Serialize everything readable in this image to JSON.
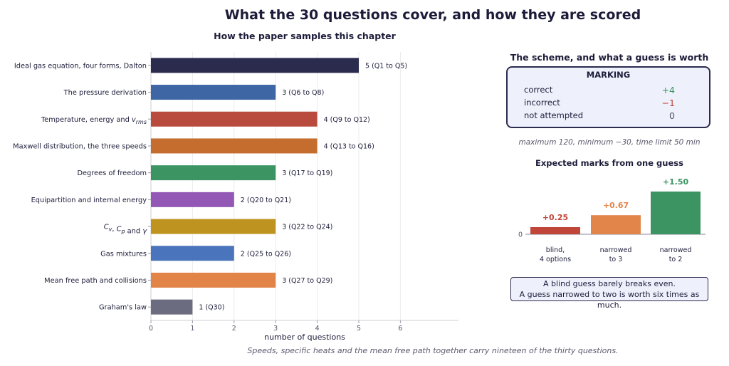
{
  "title": "What the 30 questions cover, and how they are scored",
  "footer_note": "Speeds, specific heats and the mean free path together carry nineteen of the thirty questions.",
  "chart_data": [
    {
      "type": "bar",
      "orientation": "horizontal",
      "title": "How the paper samples this chapter",
      "xlabel": "number of questions",
      "ylabel": "",
      "xlim": [
        0,
        7.4
      ],
      "xticks": [
        0,
        1,
        2,
        3,
        4,
        5,
        6
      ],
      "grid": "vertical",
      "categories": [
        "Ideal gas equation, four forms, Dalton",
        "The pressure derivation",
        "Temperature, energy and v_rms",
        "Maxwell distribution, the three speeds",
        "Degrees of freedom",
        "Equipartition and internal energy",
        "C_v, C_p and γ",
        "Gas mixtures",
        "Mean free path and collisions",
        "Graham's law"
      ],
      "values": [
        5,
        3,
        4,
        4,
        3,
        2,
        3,
        2,
        3,
        1
      ],
      "data_labels": [
        "5   (Q1 to Q5)",
        "3   (Q6 to Q8)",
        "4   (Q9 to Q12)",
        "4   (Q13 to Q16)",
        "3   (Q17 to Q19)",
        "2   (Q20 to Q21)",
        "3   (Q22 to Q24)",
        "2   (Q25 to Q26)",
        "3   (Q27 to Q29)",
        "1   (Q30)"
      ],
      "colors": [
        "#2b2b4e",
        "#3e66a5",
        "#b84a3e",
        "#c46d2e",
        "#3b9462",
        "#9357b5",
        "#bf9320",
        "#4a74bb",
        "#e28348",
        "#6b6c80"
      ]
    },
    {
      "type": "bar",
      "title": "Expected marks from one guess",
      "categories": [
        "blind,\n4 options",
        "narrowed\nto 3",
        "narrowed\nto 2"
      ],
      "values": [
        0.25,
        0.67,
        1.5
      ],
      "data_labels": [
        "+0.25",
        "+0.67",
        "+1.50"
      ],
      "colors": [
        "#c0463a",
        "#e2854a",
        "#3b9462"
      ],
      "yticks": [
        0
      ],
      "xlabel": "",
      "ylabel": ""
    }
  ],
  "scheme": {
    "title": "The scheme, and what a guess is worth",
    "box_title": "MARKING",
    "rows": [
      {
        "label": "correct",
        "value": "+4",
        "color": "#3b9462"
      },
      {
        "label": "incorrect",
        "value": "−1",
        "color": "#c0463a"
      },
      {
        "label": "not attempted",
        "value": "0",
        "color": "#55556a"
      }
    ],
    "limits": "maximum 120,   minimum −30,   time limit 50 min"
  },
  "note": {
    "line1": "A blind guess barely breaks even.",
    "line2": "A guess narrowed to two is worth six times as much."
  }
}
